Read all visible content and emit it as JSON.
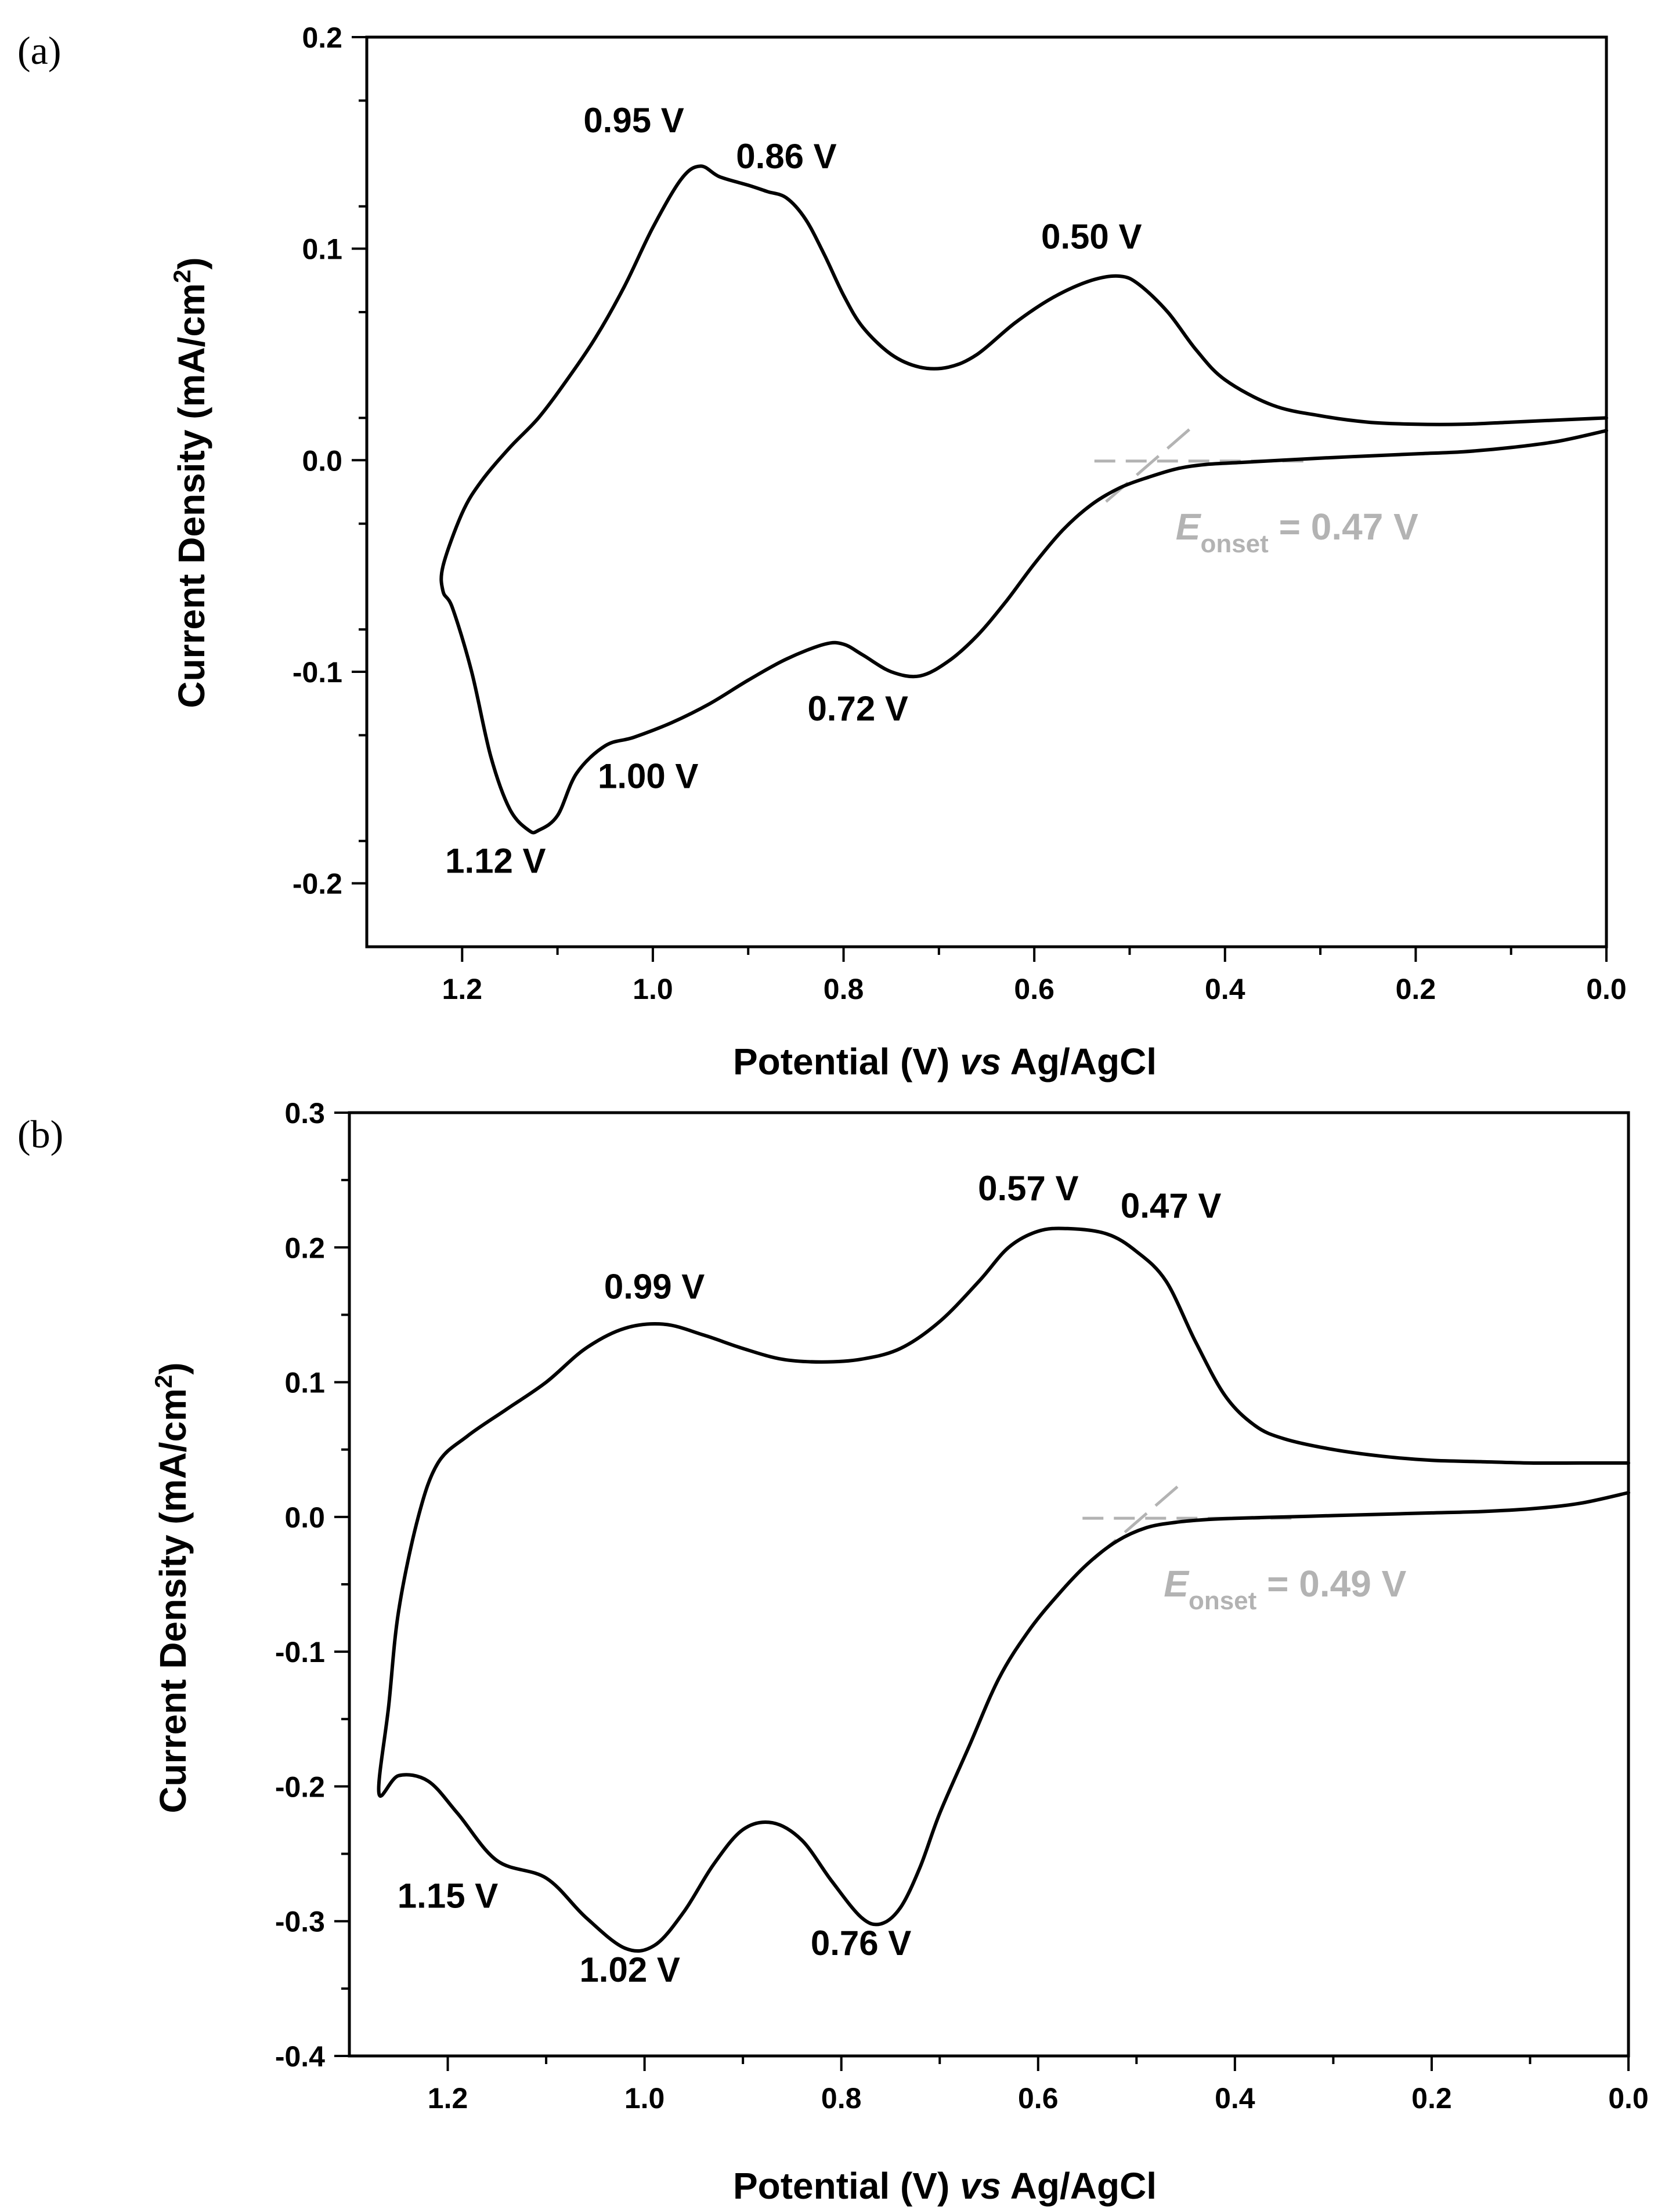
{
  "chart_data": [
    {
      "panel": "(a)",
      "type": "line",
      "xlabel": "Potential (V) vs Ag/AgCl",
      "xlabel_parts": [
        "Potential (V) ",
        "vs",
        " Ag/AgCl"
      ],
      "ylabel": "Current Density (mA/cm2)",
      "ylabel_parts": [
        "Current Density (mA/cm",
        "2",
        ")"
      ],
      "xlim": [
        1.3,
        0.0
      ],
      "ylim": [
        -0.23,
        0.2
      ],
      "xticks": [
        1.2,
        1.0,
        0.8,
        0.6,
        0.4,
        0.2,
        0.0
      ],
      "xtick_labels": [
        "1.2",
        "1.0",
        "0.8",
        "0.6",
        "0.4",
        "0.2",
        "0.0"
      ],
      "yticks": [
        0.2,
        0.1,
        0.0,
        -0.1,
        -0.2
      ],
      "ytick_labels": [
        "0.2",
        "0.1",
        "0.0",
        "-0.1",
        "-0.2"
      ],
      "series": [
        {
          "name": "cyclic voltammogram",
          "x": [
            0.0,
            0.05,
            0.1,
            0.15,
            0.2,
            0.25,
            0.3,
            0.35,
            0.4,
            0.43,
            0.46,
            0.49,
            0.51,
            0.54,
            0.58,
            0.62,
            0.66,
            0.69,
            0.72,
            0.75,
            0.78,
            0.8,
            0.82,
            0.84,
            0.86,
            0.88,
            0.9,
            0.93,
            0.95,
            0.97,
            1.0,
            1.03,
            1.06,
            1.09,
            1.12,
            1.15,
            1.18,
            1.2,
            1.22,
            1.22,
            1.21,
            1.19,
            1.17,
            1.15,
            1.13,
            1.12,
            1.1,
            1.08,
            1.05,
            1.02,
            0.98,
            0.94,
            0.9,
            0.86,
            0.82,
            0.8,
            0.78,
            0.75,
            0.72,
            0.69,
            0.66,
            0.63,
            0.6,
            0.57,
            0.54,
            0.51,
            0.48,
            0.45,
            0.42,
            0.38,
            0.34,
            0.3,
            0.25,
            0.2,
            0.15,
            0.1,
            0.05,
            0.0
          ],
          "y": [
            0.02,
            0.019,
            0.018,
            0.017,
            0.017,
            0.018,
            0.021,
            0.026,
            0.038,
            0.052,
            0.07,
            0.083,
            0.087,
            0.085,
            0.077,
            0.065,
            0.05,
            0.044,
            0.044,
            0.05,
            0.063,
            0.078,
            0.097,
            0.114,
            0.124,
            0.127,
            0.13,
            0.134,
            0.139,
            0.133,
            0.11,
            0.082,
            0.058,
            0.038,
            0.02,
            0.006,
            -0.01,
            -0.025,
            -0.05,
            -0.062,
            -0.07,
            -0.1,
            -0.14,
            -0.165,
            -0.175,
            -0.175,
            -0.168,
            -0.148,
            -0.135,
            -0.131,
            -0.124,
            -0.115,
            -0.104,
            -0.094,
            -0.087,
            -0.087,
            -0.092,
            -0.1,
            -0.102,
            -0.095,
            -0.083,
            -0.067,
            -0.049,
            -0.033,
            -0.021,
            -0.013,
            -0.008,
            -0.004,
            -0.002,
            -0.001,
            0.0,
            0.001,
            0.002,
            0.003,
            0.004,
            0.006,
            0.009,
            0.014
          ]
        }
      ],
      "annotations": [
        {
          "text": "0.95 V",
          "x": 1.02,
          "y": 0.155
        },
        {
          "text": "0.86 V",
          "x": 0.86,
          "y": 0.138
        },
        {
          "text": "0.50 V",
          "x": 0.54,
          "y": 0.1
        },
        {
          "text": "1.12 V",
          "x": 1.165,
          "y": -0.195
        },
        {
          "text": "1.00 V",
          "x": 1.005,
          "y": -0.155
        },
        {
          "text": "0.72 V",
          "x": 0.785,
          "y": -0.123
        }
      ],
      "onset": {
        "prefix": "E",
        "subscript": "onset",
        "value_text": " = 0.47 V",
        "x": 0.47,
        "y": -0.0004
      }
    },
    {
      "panel": "(b)",
      "type": "line",
      "xlabel": "Potential (V) vs Ag/AgCl",
      "xlabel_parts": [
        "Potential (V) ",
        "vs",
        " Ag/AgCl"
      ],
      "ylabel": "Current Density (mA/cm2)",
      "ylabel_parts": [
        "Current Density (mA/cm",
        "2",
        ")"
      ],
      "xlim": [
        1.3,
        0.0
      ],
      "ylim": [
        -0.4,
        0.3
      ],
      "xticks": [
        1.2,
        1.0,
        0.8,
        0.6,
        0.4,
        0.2,
        0.0
      ],
      "xtick_labels": [
        "1.2",
        "1.0",
        "0.8",
        "0.6",
        "0.4",
        "0.2",
        "0.0"
      ],
      "yticks": [
        0.3,
        0.2,
        0.1,
        0.0,
        -0.1,
        -0.2,
        -0.3,
        -0.4
      ],
      "ytick_labels": [
        "0.3",
        "0.2",
        "0.1",
        "0.0",
        "-0.1",
        "-0.2",
        "-0.3",
        "-0.4"
      ],
      "series": [
        {
          "name": "cyclic voltammogram",
          "x": [
            0.0,
            0.05,
            0.1,
            0.15,
            0.2,
            0.25,
            0.3,
            0.35,
            0.38,
            0.41,
            0.44,
            0.47,
            0.5,
            0.53,
            0.57,
            0.6,
            0.63,
            0.66,
            0.7,
            0.74,
            0.78,
            0.82,
            0.86,
            0.9,
            0.94,
            0.98,
            1.02,
            1.06,
            1.1,
            1.14,
            1.18,
            1.21,
            1.23,
            1.25,
            1.26,
            1.27,
            1.25,
            1.22,
            1.19,
            1.15,
            1.1,
            1.06,
            1.02,
            0.99,
            0.96,
            0.93,
            0.9,
            0.87,
            0.84,
            0.81,
            0.78,
            0.76,
            0.74,
            0.72,
            0.7,
            0.67,
            0.64,
            0.61,
            0.58,
            0.55,
            0.52,
            0.49,
            0.46,
            0.43,
            0.4,
            0.35,
            0.3,
            0.25,
            0.2,
            0.15,
            0.1,
            0.05,
            0.0
          ],
          "y": [
            0.04,
            0.04,
            0.04,
            0.041,
            0.042,
            0.045,
            0.05,
            0.058,
            0.068,
            0.09,
            0.13,
            0.175,
            0.197,
            0.21,
            0.214,
            0.212,
            0.2,
            0.175,
            0.145,
            0.125,
            0.117,
            0.115,
            0.117,
            0.125,
            0.135,
            0.143,
            0.14,
            0.125,
            0.1,
            0.08,
            0.06,
            0.04,
            0.0,
            -0.07,
            -0.14,
            -0.205,
            -0.192,
            -0.196,
            -0.22,
            -0.255,
            -0.268,
            -0.297,
            -0.32,
            -0.318,
            -0.293,
            -0.258,
            -0.232,
            -0.227,
            -0.24,
            -0.27,
            -0.297,
            -0.302,
            -0.29,
            -0.26,
            -0.22,
            -0.17,
            -0.12,
            -0.085,
            -0.058,
            -0.035,
            -0.018,
            -0.008,
            -0.004,
            -0.002,
            -0.001,
            0.0,
            0.001,
            0.002,
            0.003,
            0.004,
            0.006,
            0.01,
            0.018
          ]
        }
      ],
      "annotations": [
        {
          "text": "0.57 V",
          "x": 0.61,
          "y": 0.235
        },
        {
          "text": "0.47 V",
          "x": 0.465,
          "y": 0.222
        },
        {
          "text": "0.99 V",
          "x": 0.99,
          "y": 0.162
        },
        {
          "text": "1.15 V",
          "x": 1.2,
          "y": -0.29
        },
        {
          "text": "1.02 V",
          "x": 1.015,
          "y": -0.345
        },
        {
          "text": "0.76 V",
          "x": 0.78,
          "y": -0.325
        }
      ],
      "onset": {
        "prefix": "E",
        "subscript": "onset",
        "value_text": " = 0.49 V",
        "x": 0.49,
        "y": -0.001
      }
    }
  ],
  "colors": {
    "curve": "#000000",
    "onset": "#b3b3b3",
    "frame": "#000000"
  }
}
